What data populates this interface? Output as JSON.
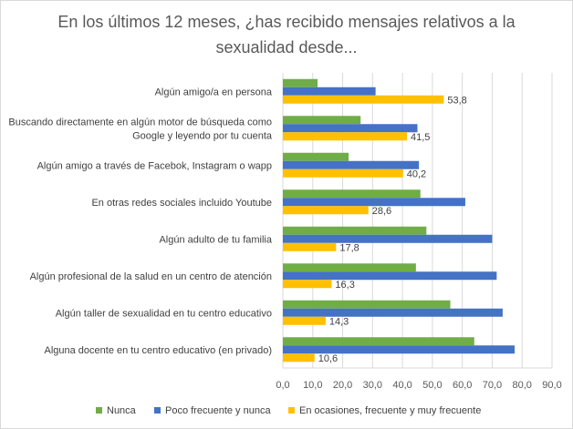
{
  "chart_data": {
    "type": "bar",
    "orientation": "horizontal",
    "title_lines": [
      "En los últimos 12 meses, ¿has recibido mensajes relativos a la",
      "sexualidad desde..."
    ],
    "categories": [
      [
        "Algún amigo/a en persona"
      ],
      [
        "Buscando directamente en algún motor de búsqueda como",
        "Google y leyendo por tu cuenta"
      ],
      [
        "Algún amigo a través de Facebok, Instagram o wapp"
      ],
      [
        "En otras redes sociales incluido Youtube"
      ],
      [
        "Algún adulto de tu familia"
      ],
      [
        "Algún profesional de la salud en un centro de atención"
      ],
      [
        "Algún taller de sexualidad en tu centro educativo"
      ],
      [
        "Alguna docente en tu centro educativo (en privado)"
      ]
    ],
    "series": [
      {
        "name": "Nunca",
        "color": "#70ad47",
        "values": [
          11.6,
          26.0,
          22.0,
          46.0,
          48.0,
          44.5,
          56.0,
          64.0
        ]
      },
      {
        "name": "Poco frecuente y nunca",
        "color": "#4472c4",
        "values": [
          31.0,
          45.0,
          45.5,
          61.0,
          70.0,
          71.5,
          73.5,
          77.5
        ]
      },
      {
        "name": "En ocasiones, frecuente y muy frecuente",
        "color": "#ffc000",
        "values": [
          53.8,
          41.5,
          40.2,
          28.6,
          17.8,
          16.3,
          14.3,
          10.6
        ]
      }
    ],
    "data_labels": [
      "53,8",
      "41,5",
      "40,2",
      "28,6",
      "17,8",
      "16,3",
      "14,3",
      "10,6"
    ],
    "x_ticks": [
      "0,0",
      "10,0",
      "20,0",
      "30,0",
      "40,0",
      "50,0",
      "60,0",
      "70,0",
      "80,0",
      "90,0"
    ],
    "xlim": [
      0,
      90
    ],
    "gridlines": true,
    "legend_position": "bottom"
  }
}
